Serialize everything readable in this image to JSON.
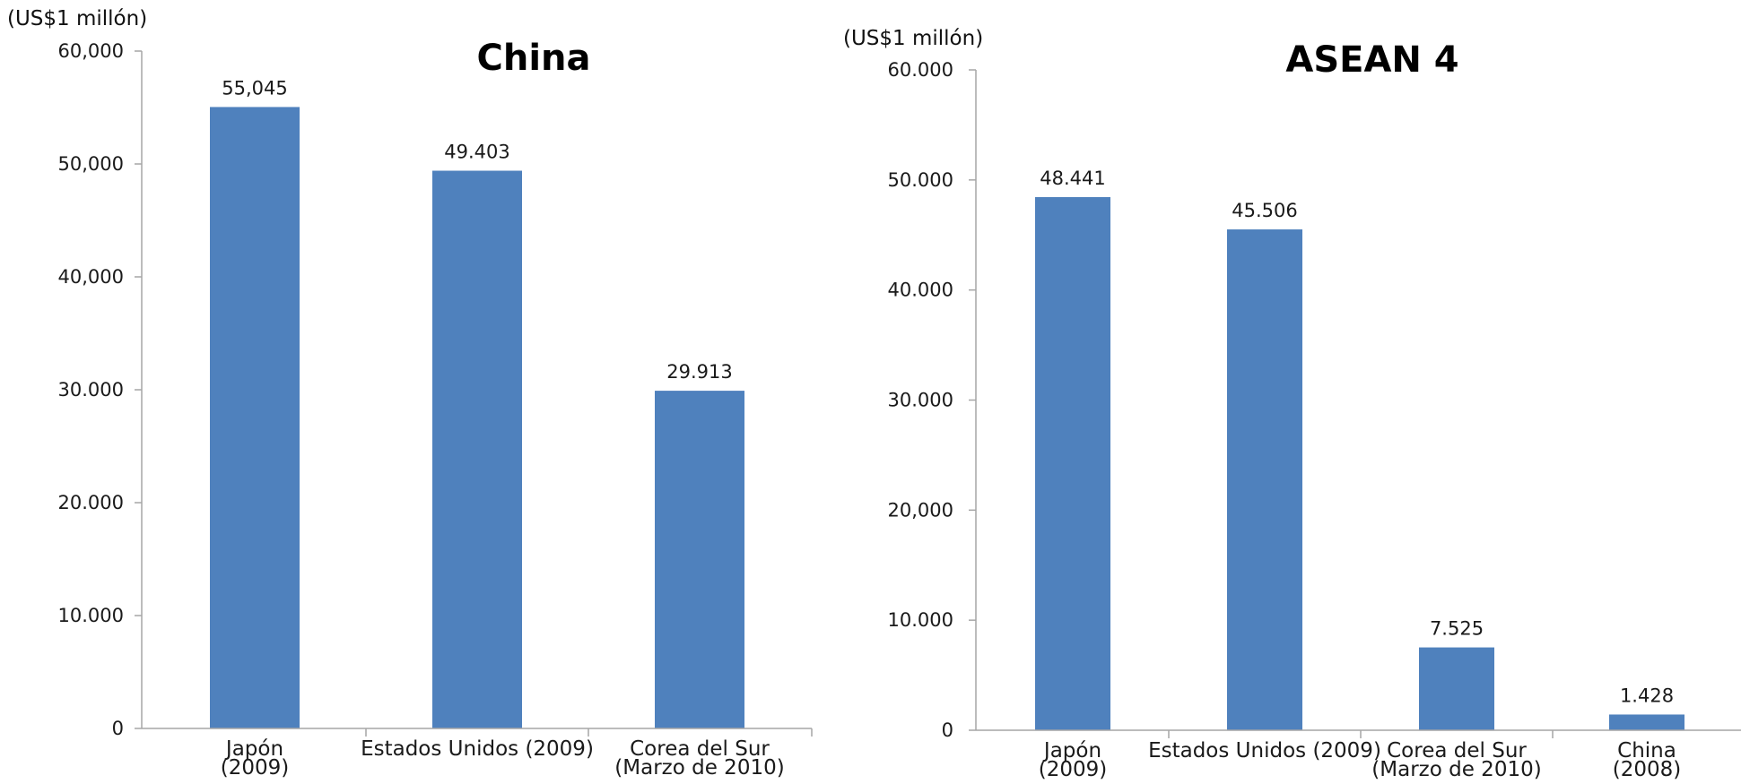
{
  "chart_data": [
    {
      "type": "bar",
      "title": "China",
      "unit_label": "(US$1 millón)",
      "ylim": [
        0,
        60000
      ],
      "yticks": [
        {
          "value": 0,
          "label": "0"
        },
        {
          "value": 10000,
          "label": "10.000"
        },
        {
          "value": 20000,
          "label": "20.000"
        },
        {
          "value": 30000,
          "label": "30.000"
        },
        {
          "value": 40000,
          "label": "40,000"
        },
        {
          "value": 50000,
          "label": "50,000"
        },
        {
          "value": 60000,
          "label": "60,000"
        }
      ],
      "categories": [
        [
          "Japón",
          "(2009)"
        ],
        [
          "Estados Unidos (2009)"
        ],
        [
          "Corea del Sur",
          "(Marzo de 2010)"
        ]
      ],
      "values": [
        55045,
        49403,
        29913
      ],
      "value_labels": [
        "55,045",
        "49.403",
        "29.913"
      ],
      "bar_color": "#4f81bd",
      "axis_color": "#a6a6a6",
      "grid": false,
      "legend": "none"
    },
    {
      "type": "bar",
      "title": "ASEAN 4",
      "unit_label": "(US$1 millón)",
      "ylim": [
        0,
        60000
      ],
      "yticks": [
        {
          "value": 0,
          "label": "0"
        },
        {
          "value": 10000,
          "label": "10.000"
        },
        {
          "value": 20000,
          "label": "20,000"
        },
        {
          "value": 30000,
          "label": "30.000"
        },
        {
          "value": 40000,
          "label": "40.000"
        },
        {
          "value": 50000,
          "label": "50.000"
        },
        {
          "value": 60000,
          "label": "60.000"
        }
      ],
      "categories": [
        [
          "Japón",
          "(2009)"
        ],
        [
          "Estados Unidos (2009)"
        ],
        [
          "Corea del Sur",
          "(Marzo de 2010)"
        ],
        [
          "China",
          "(2008)"
        ]
      ],
      "values": [
        48441,
        45506,
        7525,
        1428
      ],
      "value_labels": [
        "48.441",
        "45.506",
        "7.525",
        "1.428"
      ],
      "bar_color": "#4f81bd",
      "axis_color": "#a6a6a6",
      "grid": false,
      "legend": "none"
    }
  ]
}
